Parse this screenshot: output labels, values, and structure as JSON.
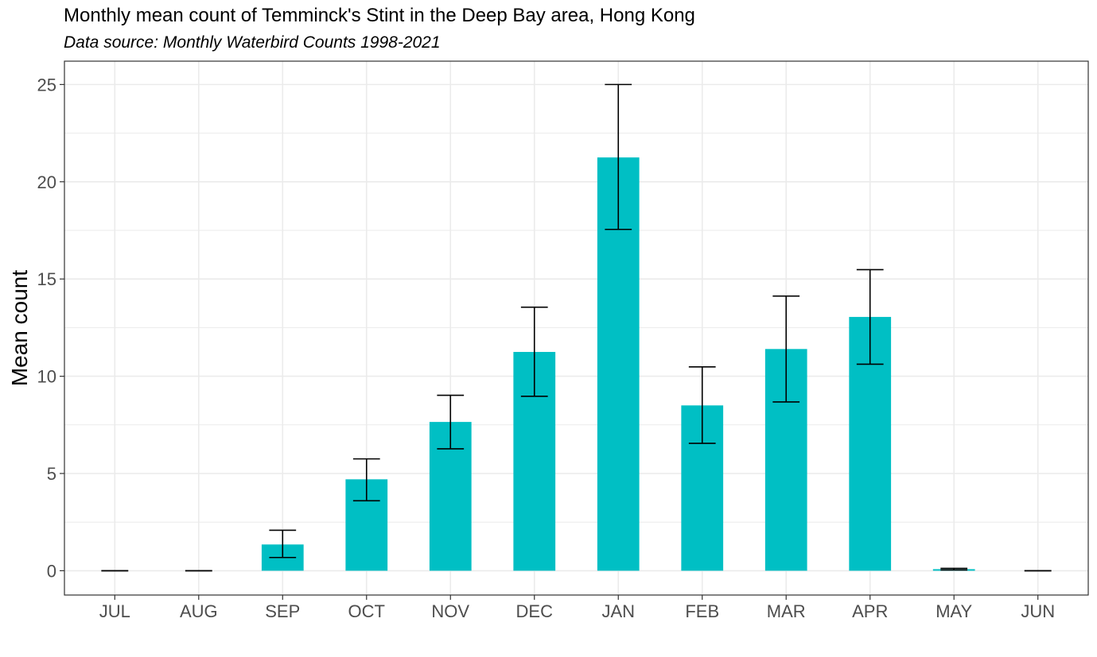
{
  "chart_data": {
    "type": "bar",
    "title": "Monthly mean count of Temminck's Stint in the Deep Bay area, Hong Kong",
    "subtitle": "Data source: Monthly Waterbird Counts 1998-2021",
    "xlabel": "",
    "ylabel": "Mean count",
    "categories": [
      "JUL",
      "AUG",
      "SEP",
      "OCT",
      "NOV",
      "DEC",
      "JAN",
      "FEB",
      "MAR",
      "APR",
      "MAY",
      "JUN"
    ],
    "values": [
      0,
      0,
      1.35,
      4.7,
      7.65,
      11.25,
      21.25,
      8.5,
      11.4,
      13.05,
      0.08,
      0
    ],
    "error_low": [
      0,
      0,
      0.68,
      3.6,
      6.27,
      8.97,
      17.55,
      6.55,
      8.68,
      10.62,
      0.04,
      0
    ],
    "error_high": [
      0,
      0,
      2.08,
      5.75,
      9.02,
      13.55,
      25.0,
      10.48,
      14.12,
      15.48,
      0.12,
      0
    ],
    "ylim": [
      -1.25,
      26.2
    ],
    "yticks": [
      0,
      5,
      10,
      15,
      20,
      25
    ],
    "grid": true,
    "bar_color": "#00BFC4",
    "panel_border_color": "#333333",
    "grid_color": "#EBEBEB"
  }
}
